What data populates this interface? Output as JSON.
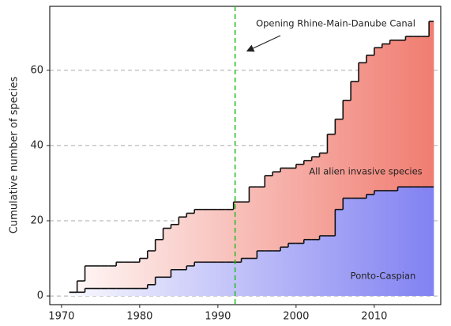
{
  "chart_data": {
    "type": "step",
    "y_label": "Cumulative number of species",
    "annotation": "Opening Rhine-Main-Danube Canal",
    "canal_opening_year": 1992.2,
    "x": [
      1971,
      1972,
      1973,
      1974,
      1975,
      1976,
      1977,
      1978,
      1979,
      1980,
      1981,
      1982,
      1983,
      1984,
      1985,
      1986,
      1987,
      1988,
      1989,
      1990,
      1991,
      1992,
      1993,
      1994,
      1995,
      1996,
      1997,
      1998,
      1999,
      2000,
      2001,
      2002,
      2003,
      2004,
      2005,
      2006,
      2007,
      2008,
      2009,
      2010,
      2011,
      2012,
      2013,
      2014,
      2015,
      2016,
      2017
    ],
    "series": [
      {
        "name": "All alien invasive species",
        "color": "#f07a6e",
        "values": [
          1,
          4,
          8,
          8,
          8,
          8,
          9,
          9,
          9,
          10,
          12,
          15,
          18,
          19,
          21,
          22,
          23,
          23,
          23,
          23,
          23,
          25,
          25,
          29,
          29,
          32,
          33,
          34,
          34,
          35,
          36,
          37,
          38,
          43,
          47,
          52,
          57,
          62,
          64,
          66,
          67,
          68,
          68,
          69,
          69,
          69,
          73
        ]
      },
      {
        "name": "Ponto-Caspian",
        "color": "#7f7ff2",
        "values": [
          1,
          1,
          2,
          2,
          2,
          2,
          2,
          2,
          2,
          2,
          3,
          5,
          5,
          7,
          7,
          8,
          9,
          9,
          9,
          9,
          9,
          9,
          10,
          10,
          12,
          12,
          12,
          13,
          14,
          14,
          15,
          15,
          16,
          16,
          23,
          26,
          26,
          26,
          27,
          28,
          28,
          28,
          29,
          29,
          29,
          29,
          29
        ]
      }
    ],
    "xlim": [
      1968.5,
      2018.5
    ],
    "ylim": [
      -2.3,
      77
    ],
    "xticks": [
      1970,
      1980,
      1990,
      2000,
      2010
    ],
    "yticks": [
      0,
      20,
      40,
      60
    ],
    "grid": true
  }
}
